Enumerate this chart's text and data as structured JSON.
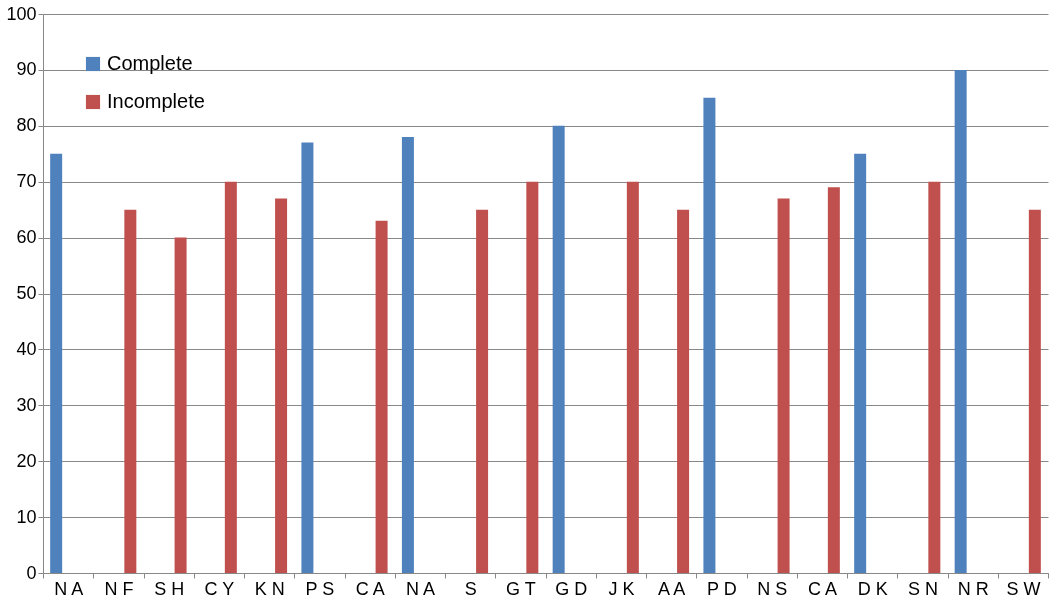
{
  "chart_data": {
    "type": "bar",
    "categories": [
      "N A",
      "N F",
      "S H",
      "C Y",
      "K N",
      "P S",
      "C A",
      "N A",
      "S",
      "G T",
      "G D",
      "J K",
      "A A",
      "P D",
      "N S",
      "C A",
      "D K",
      "S N",
      "N R",
      "S W"
    ],
    "series": [
      {
        "name": "Complete",
        "color": "#4f81bd",
        "values": [
          75,
          null,
          null,
          null,
          null,
          77,
          null,
          78,
          null,
          null,
          80,
          null,
          null,
          85,
          null,
          null,
          75,
          null,
          90,
          null
        ]
      },
      {
        "name": "Incomplete",
        "color": "#c0504d",
        "values": [
          null,
          65,
          60,
          70,
          67,
          null,
          63,
          null,
          65,
          70,
          null,
          70,
          65,
          null,
          67,
          69,
          null,
          70,
          null,
          65
        ]
      }
    ],
    "ylim": [
      0,
      100
    ],
    "yticks": [
      0,
      10,
      20,
      30,
      40,
      50,
      60,
      70,
      80,
      90,
      100
    ],
    "grid": "y",
    "legend": "top left"
  }
}
